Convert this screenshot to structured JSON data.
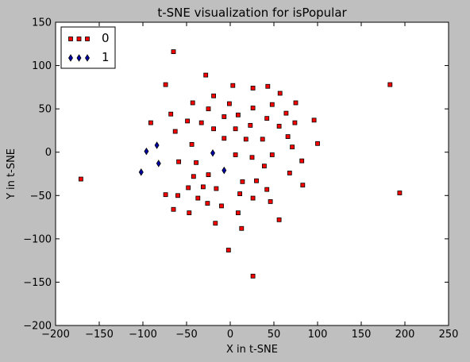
{
  "chart_data": {
    "type": "scatter",
    "title": "t-SNE visualization for isPopular",
    "xlabel": "X in t-SNE",
    "ylabel": "Y in t-SNE",
    "xlim": [
      -200,
      250
    ],
    "ylim": [
      -200,
      150
    ],
    "xticks": [
      -200,
      -150,
      -100,
      -50,
      0,
      50,
      100,
      150,
      200,
      250
    ],
    "yticks": [
      -200,
      -150,
      -100,
      -50,
      0,
      50,
      100,
      150
    ],
    "grid": false,
    "legend_position": "top-left",
    "series": [
      {
        "name": "0",
        "marker": "square",
        "color": "#ff0000",
        "points": [
          [
            -65,
            116
          ],
          [
            -28,
            89
          ],
          [
            -74,
            78
          ],
          [
            3,
            77
          ],
          [
            26,
            74
          ],
          [
            43,
            76
          ],
          [
            57,
            68
          ],
          [
            -19,
            65
          ],
          [
            -43,
            57
          ],
          [
            -1,
            56
          ],
          [
            75,
            57
          ],
          [
            -25,
            50
          ],
          [
            26,
            51
          ],
          [
            48,
            55
          ],
          [
            64,
            45
          ],
          [
            -68,
            44
          ],
          [
            9,
            43
          ],
          [
            -7,
            41
          ],
          [
            42,
            39
          ],
          [
            -91,
            34
          ],
          [
            -49,
            36
          ],
          [
            -33,
            34
          ],
          [
            23,
            31
          ],
          [
            56,
            30
          ],
          [
            74,
            34
          ],
          [
            96,
            37
          ],
          [
            -19,
            27
          ],
          [
            6,
            27
          ],
          [
            -63,
            24
          ],
          [
            -7,
            16
          ],
          [
            18,
            15
          ],
          [
            37,
            15
          ],
          [
            66,
            18
          ],
          [
            -44,
            9
          ],
          [
            71,
            6
          ],
          [
            100,
            10
          ],
          [
            6,
            -3
          ],
          [
            25,
            -6
          ],
          [
            48,
            -3
          ],
          [
            -39,
            -12
          ],
          [
            -59,
            -11
          ],
          [
            82,
            -10
          ],
          [
            -25,
            -26
          ],
          [
            -42,
            -28
          ],
          [
            39,
            -16
          ],
          [
            68,
            -24
          ],
          [
            -48,
            -41
          ],
          [
            -31,
            -40
          ],
          [
            -16,
            -42
          ],
          [
            14,
            -34
          ],
          [
            30,
            -33
          ],
          [
            83,
            -38
          ],
          [
            -74,
            -49
          ],
          [
            -60,
            -50
          ],
          [
            -37,
            -53
          ],
          [
            11,
            -48
          ],
          [
            42,
            -43
          ],
          [
            -26,
            -59
          ],
          [
            -10,
            -62
          ],
          [
            26,
            -53
          ],
          [
            46,
            -57
          ],
          [
            -65,
            -66
          ],
          [
            -47,
            -70
          ],
          [
            9,
            -70
          ],
          [
            56,
            -78
          ],
          [
            -17,
            -82
          ],
          [
            13,
            -88
          ],
          [
            -2,
            -113
          ],
          [
            26,
            -143
          ],
          [
            -171,
            -31
          ],
          [
            183,
            78
          ],
          [
            194,
            -47
          ]
        ]
      },
      {
        "name": "1",
        "marker": "diamond",
        "color": "#0000aa",
        "points": [
          [
            -96,
            1
          ],
          [
            -84,
            8
          ],
          [
            -82,
            -13
          ],
          [
            -102,
            -23
          ],
          [
            -20,
            -1
          ],
          [
            -7,
            -21
          ]
        ]
      }
    ]
  },
  "legend": {
    "label_0": "0",
    "label_1": "1"
  }
}
